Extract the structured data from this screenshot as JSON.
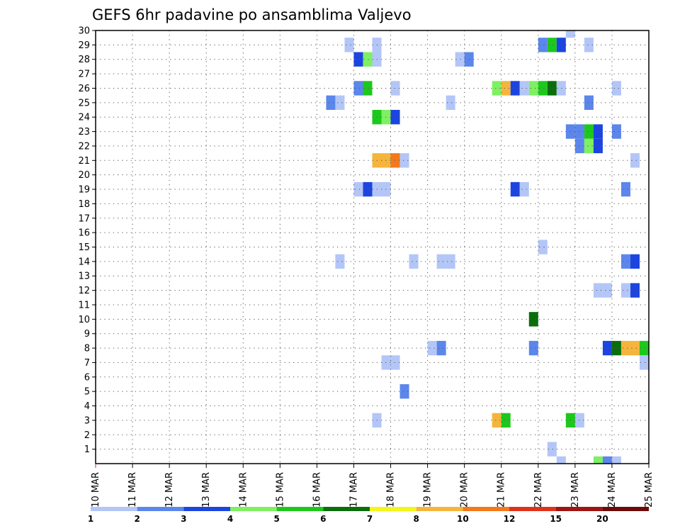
{
  "chart_data": {
    "type": "heatmap",
    "title": "GEFS 6hr padavine po ansamblima Valjevo",
    "x_start_day": 10,
    "x_end_day": 25,
    "x_tick_labels": [
      "10 MAR",
      "11 MAR",
      "12 MAR",
      "13 MAR",
      "14 MAR",
      "15 MAR",
      "16 MAR",
      "17 MAR",
      "18 MAR",
      "19 MAR",
      "20 MAR",
      "21 MAR",
      "22 MAR",
      "23 MAR",
      "24 MAR",
      "25 MAR"
    ],
    "y_tick_labels": [
      "1",
      "2",
      "3",
      "4",
      "5",
      "6",
      "7",
      "8",
      "9",
      "10",
      "11",
      "12",
      "13",
      "14",
      "15",
      "16",
      "17",
      "18",
      "19",
      "20",
      "21",
      "22",
      "23",
      "24",
      "25",
      "26",
      "27",
      "28",
      "29",
      "30"
    ],
    "y_range": [
      0,
      30
    ],
    "step_hours": 6,
    "colorbar": {
      "labels": [
        "1",
        "2",
        "3",
        "4",
        "5",
        "6",
        "7",
        "8",
        "10",
        "12",
        "15",
        "20"
      ],
      "colors": [
        "#b3c6f7",
        "#5b86ec",
        "#1c45e0",
        "#7ef061",
        "#1cc81c",
        "#0a6e0a",
        "#f5f51a",
        "#f5b43c",
        "#f5781a",
        "#e0321a",
        "#a01414",
        "#6e0a0a"
      ]
    },
    "cells": [
      {
        "member": 30,
        "day": 22.75,
        "level": 1
      },
      {
        "member": 29,
        "day": 16.75,
        "level": 1
      },
      {
        "member": 29,
        "day": 17.5,
        "level": 1
      },
      {
        "member": 29,
        "day": 22.0,
        "level": 2
      },
      {
        "member": 29,
        "day": 22.25,
        "level": 5
      },
      {
        "member": 29,
        "day": 22.5,
        "level": 3
      },
      {
        "member": 29,
        "day": 23.25,
        "level": 1
      },
      {
        "member": 28,
        "day": 17.0,
        "level": 3
      },
      {
        "member": 28,
        "day": 17.25,
        "level": 4
      },
      {
        "member": 28,
        "day": 17.5,
        "level": 1
      },
      {
        "member": 28,
        "day": 19.75,
        "level": 1
      },
      {
        "member": 28,
        "day": 20.0,
        "level": 2
      },
      {
        "member": 26,
        "day": 17.0,
        "level": 2
      },
      {
        "member": 26,
        "day": 17.25,
        "level": 5
      },
      {
        "member": 26,
        "day": 18.0,
        "level": 1
      },
      {
        "member": 26,
        "day": 20.75,
        "level": 4
      },
      {
        "member": 26,
        "day": 21.0,
        "level": 8
      },
      {
        "member": 26,
        "day": 21.25,
        "level": 3
      },
      {
        "member": 26,
        "day": 21.5,
        "level": 1
      },
      {
        "member": 26,
        "day": 21.75,
        "level": 4
      },
      {
        "member": 26,
        "day": 22.0,
        "level": 5
      },
      {
        "member": 26,
        "day": 22.25,
        "level": 6
      },
      {
        "member": 26,
        "day": 22.5,
        "level": 1
      },
      {
        "member": 26,
        "day": 24.0,
        "level": 1
      },
      {
        "member": 25,
        "day": 16.25,
        "level": 2
      },
      {
        "member": 25,
        "day": 16.5,
        "level": 1
      },
      {
        "member": 25,
        "day": 19.5,
        "level": 1
      },
      {
        "member": 25,
        "day": 23.25,
        "level": 2
      },
      {
        "member": 24,
        "day": 17.5,
        "level": 5
      },
      {
        "member": 24,
        "day": 17.75,
        "level": 4
      },
      {
        "member": 24,
        "day": 18.0,
        "level": 3
      },
      {
        "member": 23,
        "day": 22.75,
        "level": 2
      },
      {
        "member": 23,
        "day": 23.0,
        "level": 2
      },
      {
        "member": 23,
        "day": 23.25,
        "level": 5
      },
      {
        "member": 23,
        "day": 23.5,
        "level": 3
      },
      {
        "member": 23,
        "day": 24.0,
        "level": 2
      },
      {
        "member": 22,
        "day": 23.0,
        "level": 2
      },
      {
        "member": 22,
        "day": 23.25,
        "level": 4
      },
      {
        "member": 22,
        "day": 23.5,
        "level": 3
      },
      {
        "member": 21,
        "day": 17.5,
        "level": 8
      },
      {
        "member": 21,
        "day": 17.75,
        "level": 8
      },
      {
        "member": 21,
        "day": 18.0,
        "level": 9
      },
      {
        "member": 21,
        "day": 18.25,
        "level": 1
      },
      {
        "member": 21,
        "day": 24.5,
        "level": 1
      },
      {
        "member": 19,
        "day": 17.0,
        "level": 1
      },
      {
        "member": 19,
        "day": 17.25,
        "level": 3
      },
      {
        "member": 19,
        "day": 17.5,
        "level": 1
      },
      {
        "member": 19,
        "day": 17.75,
        "level": 1
      },
      {
        "member": 19,
        "day": 21.25,
        "level": 3
      },
      {
        "member": 19,
        "day": 21.5,
        "level": 1
      },
      {
        "member": 19,
        "day": 24.25,
        "level": 2
      },
      {
        "member": 15,
        "day": 22.0,
        "level": 1
      },
      {
        "member": 14,
        "day": 16.5,
        "level": 1
      },
      {
        "member": 14,
        "day": 18.5,
        "level": 1
      },
      {
        "member": 14,
        "day": 19.25,
        "level": 1
      },
      {
        "member": 14,
        "day": 19.5,
        "level": 1
      },
      {
        "member": 14,
        "day": 24.25,
        "level": 2
      },
      {
        "member": 14,
        "day": 24.5,
        "level": 3
      },
      {
        "member": 12,
        "day": 23.5,
        "level": 1
      },
      {
        "member": 12,
        "day": 23.75,
        "level": 1
      },
      {
        "member": 12,
        "day": 24.25,
        "level": 1
      },
      {
        "member": 12,
        "day": 24.5,
        "level": 3
      },
      {
        "member": 10,
        "day": 21.75,
        "level": 6
      },
      {
        "member": 8,
        "day": 19.0,
        "level": 1
      },
      {
        "member": 8,
        "day": 19.25,
        "level": 2
      },
      {
        "member": 8,
        "day": 21.75,
        "level": 2
      },
      {
        "member": 8,
        "day": 23.75,
        "level": 3
      },
      {
        "member": 8,
        "day": 24.0,
        "level": 6
      },
      {
        "member": 8,
        "day": 24.25,
        "level": 8
      },
      {
        "member": 8,
        "day": 24.5,
        "level": 8
      },
      {
        "member": 8,
        "day": 24.75,
        "level": 5
      },
      {
        "member": 7,
        "day": 17.75,
        "level": 1
      },
      {
        "member": 7,
        "day": 18.0,
        "level": 1
      },
      {
        "member": 7,
        "day": 24.75,
        "level": 1
      },
      {
        "member": 5,
        "day": 18.25,
        "level": 2
      },
      {
        "member": 3,
        "day": 17.5,
        "level": 1
      },
      {
        "member": 3,
        "day": 20.75,
        "level": 8
      },
      {
        "member": 3,
        "day": 21.0,
        "level": 5
      },
      {
        "member": 3,
        "day": 22.75,
        "level": 5
      },
      {
        "member": 3,
        "day": 23.0,
        "level": 1
      },
      {
        "member": 1,
        "day": 22.25,
        "level": 1
      },
      {
        "member": 0,
        "day": 22.5,
        "level": 1
      },
      {
        "member": 0,
        "day": 23.5,
        "level": 4
      },
      {
        "member": 0,
        "day": 23.75,
        "level": 2
      },
      {
        "member": 0,
        "day": 24.0,
        "level": 1
      }
    ]
  }
}
